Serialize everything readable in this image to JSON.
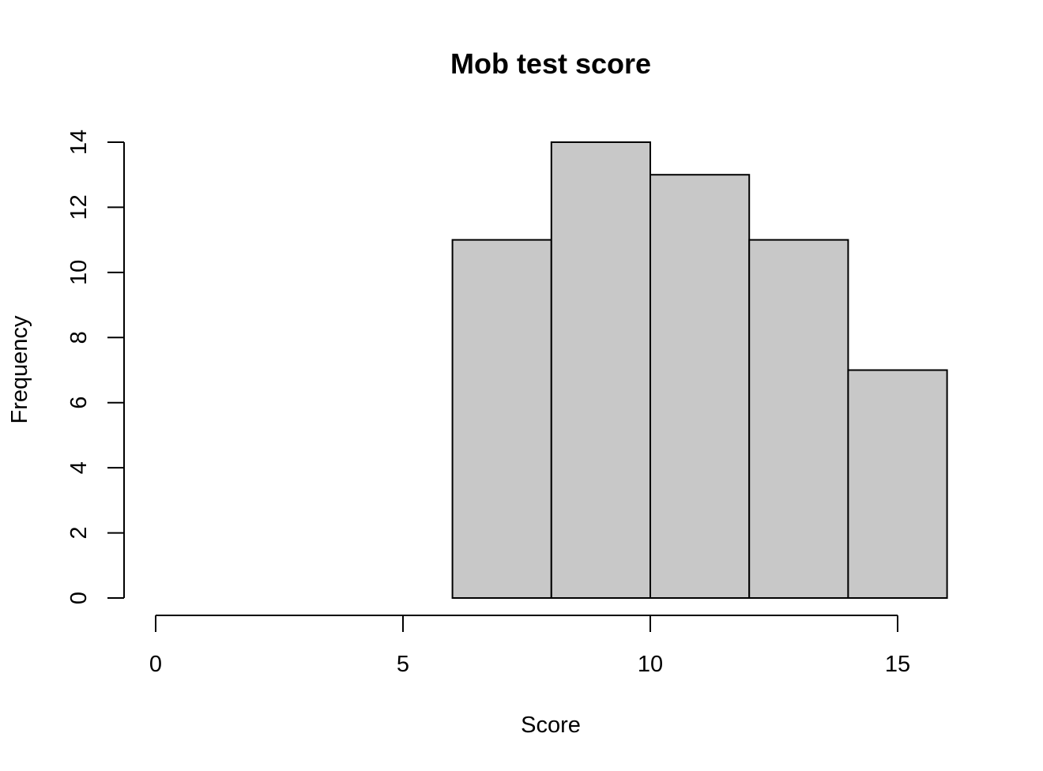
{
  "chart_data": {
    "type": "bar",
    "title": "Mob test score",
    "xlabel": "Score",
    "ylabel": "Frequency",
    "bins": [
      {
        "start": 6,
        "end": 8,
        "count": 11
      },
      {
        "start": 8,
        "end": 10,
        "count": 14
      },
      {
        "start": 10,
        "end": 12,
        "count": 13
      },
      {
        "start": 12,
        "end": 14,
        "count": 11
      },
      {
        "start": 14,
        "end": 16,
        "count": 7
      }
    ],
    "xlim": [
      0,
      15
    ],
    "ylim": [
      0,
      14
    ],
    "x_ticks": [
      0,
      5,
      10,
      15
    ],
    "y_ticks": [
      0,
      2,
      4,
      6,
      8,
      10,
      12,
      14
    ],
    "grid": false,
    "colors": {
      "bar_fill": "#c8c8c8",
      "bar_stroke": "#000000"
    }
  }
}
